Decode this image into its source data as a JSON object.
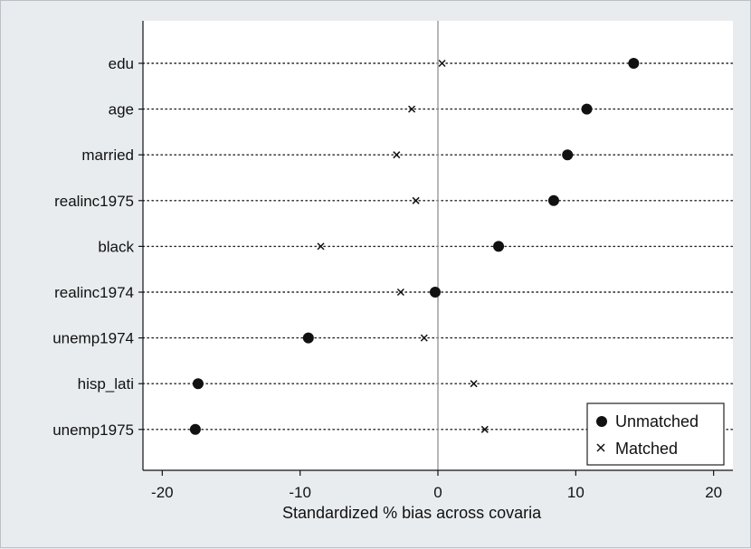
{
  "chart_data": {
    "type": "scatter",
    "categories": [
      "edu",
      "age",
      "married",
      "realinc1975",
      "black",
      "realinc1974",
      "unemp1974",
      "hisp_lati",
      "unemp1975"
    ],
    "series": [
      {
        "name": "Unmatched",
        "marker": "filled-circle",
        "values": [
          14.2,
          10.8,
          9.4,
          8.4,
          4.4,
          -0.2,
          -9.4,
          -17.4,
          -17.6
        ]
      },
      {
        "name": "Matched",
        "marker": "x",
        "values": [
          0.3,
          -1.9,
          -3.0,
          -1.6,
          -8.5,
          -2.7,
          -1.0,
          2.6,
          3.4
        ]
      }
    ],
    "xlabel": "Standardized % bias across covaria",
    "xticks": [
      -20,
      -10,
      0,
      10,
      20
    ],
    "xtick_labels": [
      "-20",
      "-10",
      "0",
      "10",
      "20"
    ],
    "xlim": [
      -21.4,
      21.4
    ],
    "zero_line": 0,
    "grid": "dotted horizontal lines per covariate",
    "legend_position": "bottom-right",
    "colors": {
      "marker": "#111111",
      "plot_background": "#ffffff",
      "page_background": "#e9ecef",
      "zero_line": "#a0a0a0"
    }
  }
}
